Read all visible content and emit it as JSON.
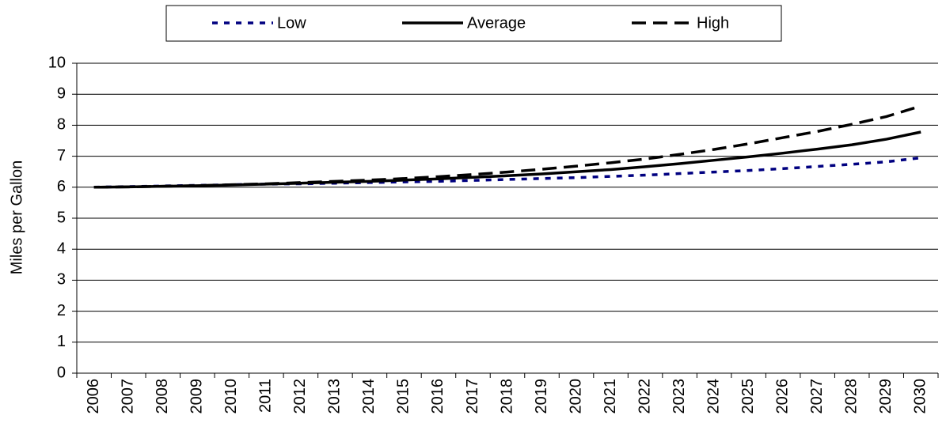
{
  "chart_data": {
    "type": "line",
    "y_label": "Miles per Gallon",
    "categories": [
      "2006",
      "2007",
      "2008",
      "2009",
      "2010",
      "2011",
      "2012",
      "2013",
      "2014",
      "2015",
      "2016",
      "2017",
      "2018",
      "2019",
      "2020",
      "2021",
      "2022",
      "2023",
      "2024",
      "2025",
      "2026",
      "2027",
      "2028",
      "2029",
      "2030"
    ],
    "series": [
      {
        "name": "Low",
        "color": "#000080",
        "dash": "dotted",
        "values": [
          6.0,
          6.02,
          6.04,
          6.06,
          6.08,
          6.1,
          6.11,
          6.13,
          6.15,
          6.17,
          6.19,
          6.22,
          6.25,
          6.28,
          6.31,
          6.35,
          6.39,
          6.44,
          6.49,
          6.54,
          6.6,
          6.67,
          6.74,
          6.82,
          6.95
        ]
      },
      {
        "name": "Average",
        "color": "#000000",
        "dash": "solid",
        "values": [
          6.0,
          6.01,
          6.03,
          6.05,
          6.07,
          6.1,
          6.13,
          6.16,
          6.19,
          6.23,
          6.27,
          6.32,
          6.37,
          6.43,
          6.5,
          6.57,
          6.66,
          6.76,
          6.87,
          6.98,
          7.1,
          7.23,
          7.37,
          7.55,
          7.78
        ]
      },
      {
        "name": "High",
        "color": "#000000",
        "dash": "dashed",
        "values": [
          6.0,
          6.01,
          6.03,
          6.05,
          6.08,
          6.11,
          6.15,
          6.19,
          6.23,
          6.28,
          6.34,
          6.41,
          6.49,
          6.58,
          6.68,
          6.79,
          6.91,
          7.06,
          7.22,
          7.4,
          7.6,
          7.8,
          8.03,
          8.28,
          8.62
        ]
      }
    ],
    "ylim": [
      0,
      10
    ],
    "yticks": [
      0,
      1,
      2,
      3,
      4,
      5,
      6,
      7,
      8,
      9,
      10
    ],
    "grid": true,
    "legend": "top"
  }
}
